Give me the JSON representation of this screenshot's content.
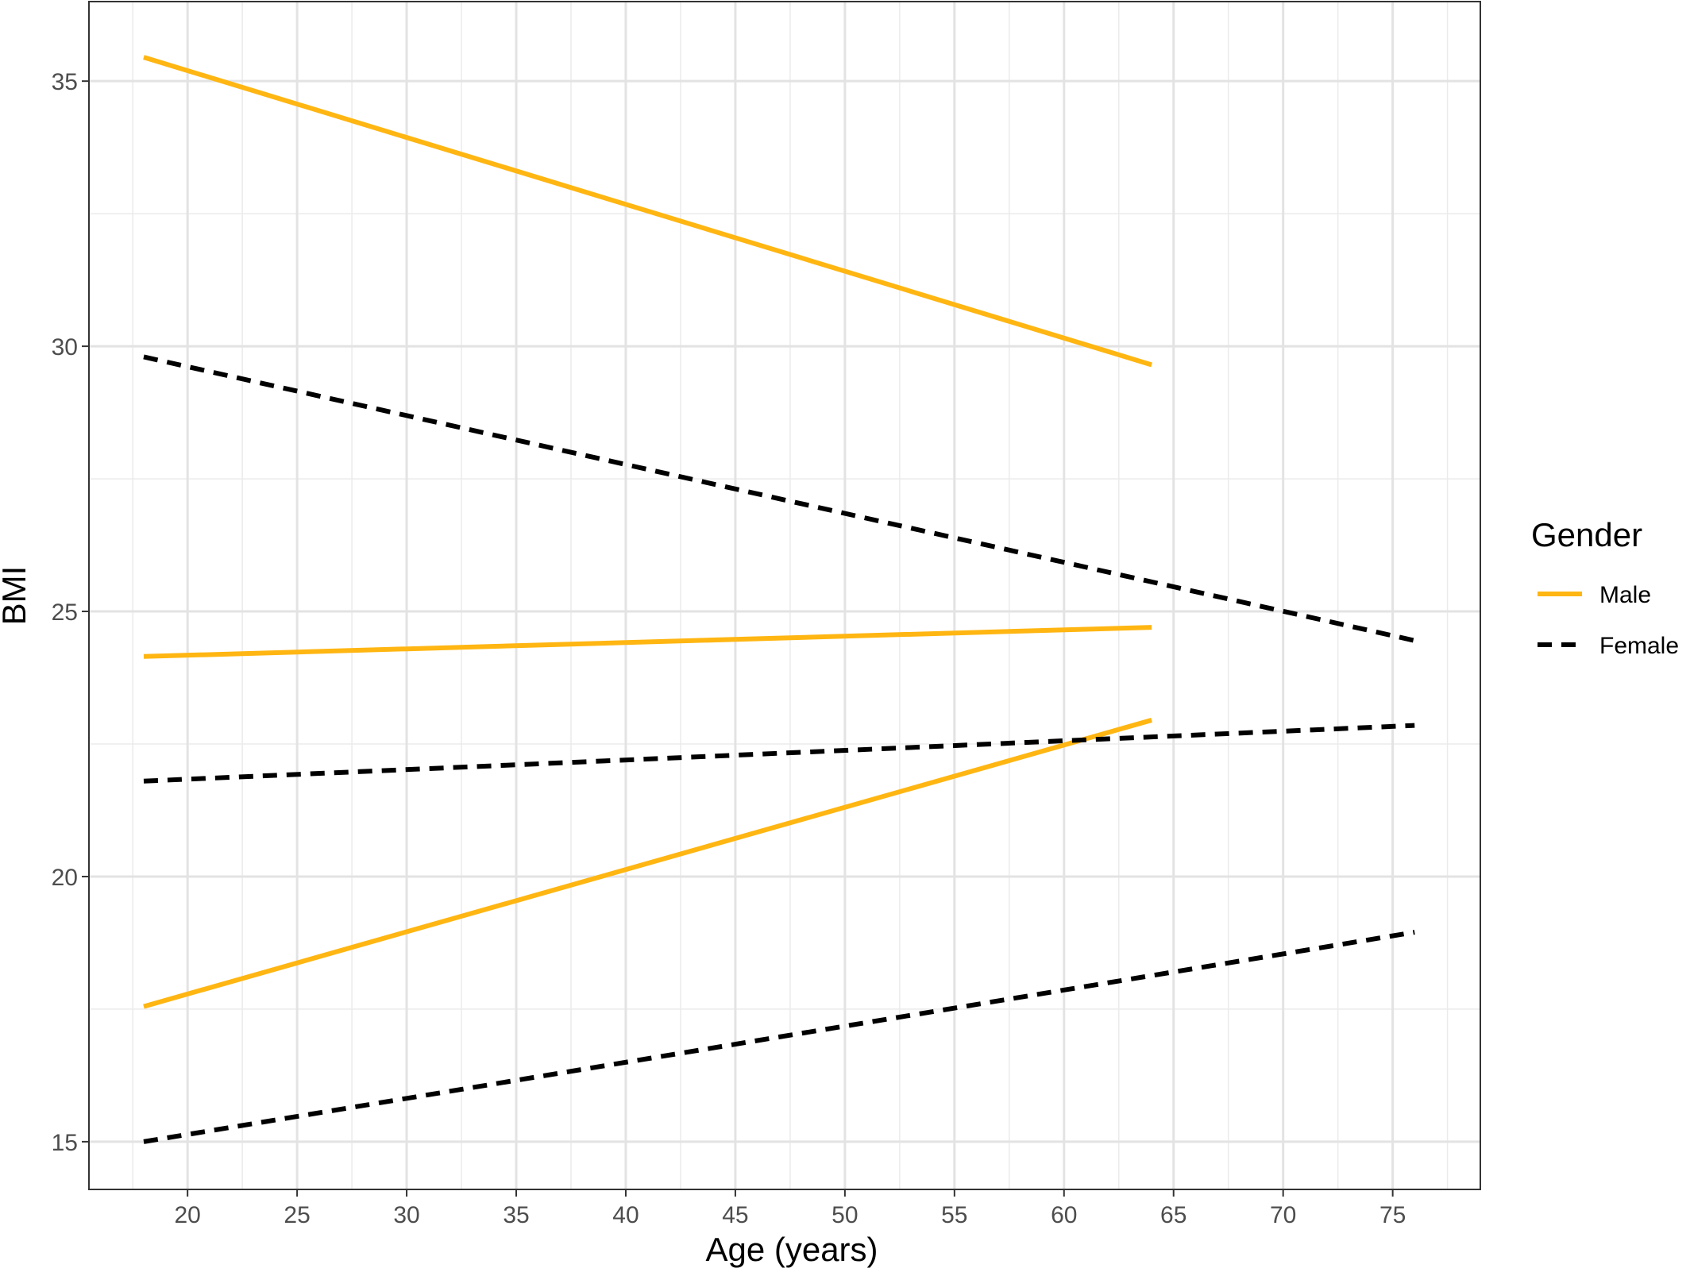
{
  "chart_data": {
    "type": "line",
    "xlabel": "Age (years)",
    "ylabel": "BMI",
    "xlim": [
      15.5,
      79
    ],
    "ylim": [
      14.1,
      36.5
    ],
    "x_ticks": [
      20,
      25,
      30,
      35,
      40,
      45,
      50,
      55,
      60,
      65,
      70,
      75
    ],
    "y_ticks": [
      15,
      20,
      25,
      30,
      35
    ],
    "x_tick_labels": [
      "20",
      "25",
      "30",
      "35",
      "40",
      "45",
      "50",
      "55",
      "60",
      "65",
      "70",
      "75"
    ],
    "y_tick_labels": [
      "15",
      "20",
      "25",
      "30",
      "35"
    ],
    "grid": true,
    "legend": {
      "title": "Gender",
      "placement": "right",
      "entries": [
        {
          "label": "Male",
          "color": "#FFB612",
          "dash": "solid"
        },
        {
          "label": "Female",
          "color": "#000000",
          "dash": "dashed"
        }
      ]
    },
    "series": [
      {
        "group": "Male",
        "x": [
          18,
          64
        ],
        "y": [
          35.45,
          29.65
        ]
      },
      {
        "group": "Male",
        "x": [
          18,
          64
        ],
        "y": [
          24.15,
          24.7
        ]
      },
      {
        "group": "Male",
        "x": [
          18,
          64
        ],
        "y": [
          17.55,
          22.95
        ]
      },
      {
        "group": "Female",
        "x": [
          18,
          76
        ],
        "y": [
          29.8,
          24.45
        ]
      },
      {
        "group": "Female",
        "x": [
          18,
          76
        ],
        "y": [
          21.8,
          22.85
        ]
      },
      {
        "group": "Female",
        "x": [
          18,
          76
        ],
        "y": [
          15.0,
          18.95
        ]
      }
    ]
  }
}
